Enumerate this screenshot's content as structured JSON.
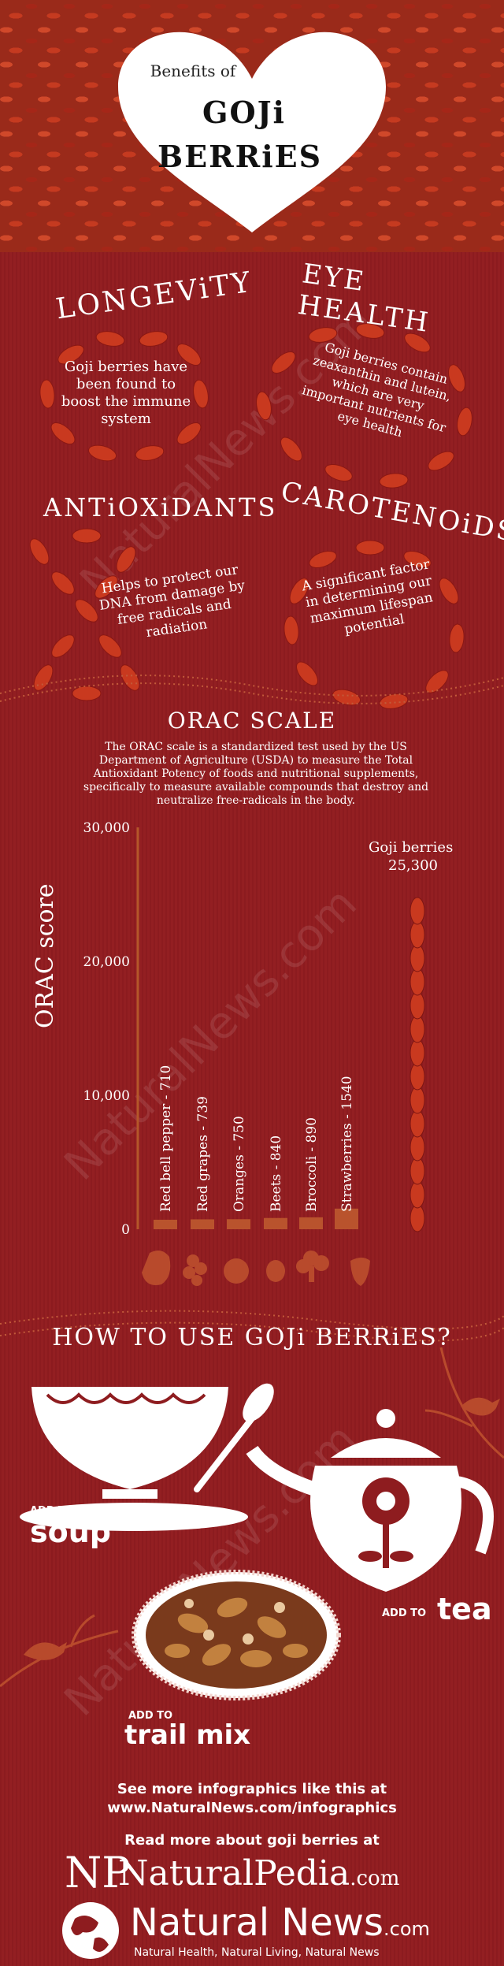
{
  "header": {
    "line1": "Benefits of",
    "line2": "GOJi",
    "line3": "BERRiES"
  },
  "benefits": [
    {
      "title": "LONGEViTY",
      "text": "Goji berries have been found to boost the immune system"
    },
    {
      "title": "EYE HEALTH",
      "text": "Goji berries contain zeaxanthin and lutein, which are very important nutrients for eye health"
    },
    {
      "title": "ANTiOXiDANTS",
      "text": "Helps to protect our DNA from damage by free radicals and radiation"
    },
    {
      "title": "CAROTENOiDS",
      "text": "A significant factor in determining our maximum lifespan potential"
    }
  ],
  "orac": {
    "title": "ORAC SCALE",
    "description": "The ORAC scale is a standardized test used by the US Department of Agriculture (USDA) to measure the Total Antioxidant Potency of foods and nutritional supplements, specifically to measure available compounds that destroy and neutralize free-radicals in the body.",
    "goji_label": "Goji berries",
    "goji_value": "25,300"
  },
  "chart_data": {
    "type": "bar",
    "ylabel": "ORAC score",
    "ylim": [
      0,
      30000
    ],
    "yticks": [
      "30,000",
      "20,000",
      "10,000",
      "0"
    ],
    "categories": [
      "Red bell pepper",
      "Red grapes",
      "Oranges",
      "Beets",
      "Broccoli",
      "Strawberries",
      "Goji berries"
    ],
    "values": [
      710,
      739,
      750,
      840,
      890,
      1540,
      25300
    ],
    "labels": [
      "Red bell pepper - 710",
      "Red grapes - 739",
      "Oranges - 750",
      "Beets - 840",
      "Broccoli - 890",
      "Strawberries - 1540"
    ]
  },
  "uses": {
    "title": "HOW TO USE GOJi BERRiES?",
    "soup_small": "ADD TO",
    "soup_big": "soup",
    "tea_small": "ADD TO",
    "tea_big": "tea",
    "mix_small": "ADD TO",
    "mix_big": "trail mix"
  },
  "footer": {
    "line1": "See more infographics like this at",
    "line2": "www.NaturalNews.com/infographics",
    "line3": "Read more about goji berries at",
    "pedia_mark": "NP",
    "pedia_name": "NaturalPedia",
    "pedia_tld": ".com",
    "news_name": "Natural News",
    "news_tld": ".com",
    "news_tagline": "Natural Health, Natural Living, Natural News"
  },
  "watermark": "NaturalNews.com",
  "colors": {
    "background": "#8e1c1f",
    "berry": "#c9391f",
    "text": "#ffffff",
    "chart_axis": "#b5572a"
  }
}
